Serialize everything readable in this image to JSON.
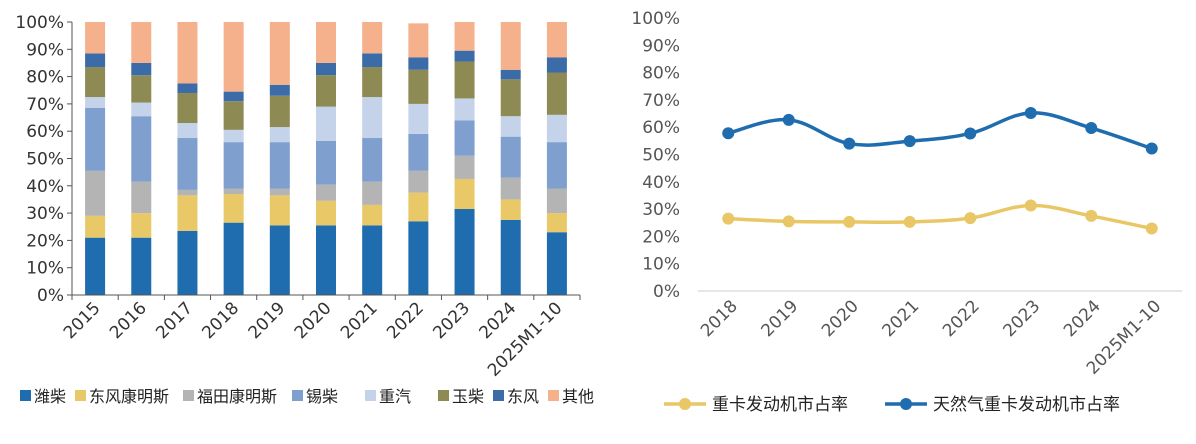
{
  "chart_data": [
    {
      "type": "bar",
      "stacked": true,
      "categories": [
        "2015",
        "2016",
        "2017",
        "2018",
        "2019",
        "2020",
        "2021",
        "2022",
        "2023",
        "2024",
        "2025M1-10"
      ],
      "ylim": [
        0,
        1
      ],
      "yticks": [
        "0%",
        "10%",
        "20%",
        "30%",
        "40%",
        "50%",
        "60%",
        "70%",
        "80%",
        "90%",
        "100%"
      ],
      "legend_position": "bottom",
      "series": [
        {
          "name": "潍柴",
          "color": "#1F6DAE",
          "values": [
            0.21,
            0.21,
            0.235,
            0.265,
            0.255,
            0.255,
            0.255,
            0.27,
            0.315,
            0.275,
            0.23
          ]
        },
        {
          "name": "东风康明斯",
          "color": "#E8C867",
          "values": [
            0.08,
            0.09,
            0.13,
            0.105,
            0.11,
            0.09,
            0.075,
            0.105,
            0.11,
            0.075,
            0.07
          ]
        },
        {
          "name": "福田康明斯",
          "color": "#B4B4B4",
          "values": [
            0.165,
            0.115,
            0.02,
            0.02,
            0.025,
            0.06,
            0.085,
            0.08,
            0.085,
            0.08,
            0.09
          ]
        },
        {
          "name": "锡柴",
          "color": "#7F9FCF",
          "values": [
            0.23,
            0.24,
            0.19,
            0.17,
            0.17,
            0.16,
            0.16,
            0.135,
            0.13,
            0.15,
            0.17
          ]
        },
        {
          "name": "重汽",
          "color": "#C5D3EA",
          "values": [
            0.04,
            0.05,
            0.055,
            0.045,
            0.055,
            0.125,
            0.15,
            0.11,
            0.08,
            0.075,
            0.1
          ]
        },
        {
          "name": "玉柴",
          "color": "#8D8A54",
          "values": [
            0.11,
            0.1,
            0.11,
            0.105,
            0.115,
            0.115,
            0.11,
            0.125,
            0.135,
            0.135,
            0.155
          ]
        },
        {
          "name": "东风",
          "color": "#3C6CA8",
          "values": [
            0.05,
            0.045,
            0.035,
            0.035,
            0.04,
            0.045,
            0.05,
            0.045,
            0.04,
            0.035,
            0.055
          ]
        },
        {
          "name": "其他",
          "color": "#F5B08C",
          "values": [
            0.115,
            0.15,
            0.225,
            0.255,
            0.23,
            0.15,
            0.115,
            0.125,
            0.105,
            0.175,
            0.13
          ]
        }
      ]
    },
    {
      "type": "line",
      "x": [
        "2018",
        "2019",
        "2020",
        "2021",
        "2022",
        "2023",
        "2024",
        "2025M1-10"
      ],
      "ylim": [
        0,
        1
      ],
      "yticks": [
        "0%",
        "10%",
        "20%",
        "30%",
        "40%",
        "50%",
        "60%",
        "70%",
        "80%",
        "90%",
        "100%"
      ],
      "legend_position": "bottom",
      "series": [
        {
          "name": "重卡发动机市占率",
          "color": "#E9C766",
          "values": [
            0.265,
            0.255,
            0.253,
            0.253,
            0.267,
            0.313,
            0.275,
            0.229
          ]
        },
        {
          "name": "天然气重卡发动机市占率",
          "color": "#1F6DAE",
          "values": [
            0.578,
            0.627,
            0.54,
            0.549,
            0.577,
            0.652,
            0.597,
            0.522
          ]
        }
      ]
    }
  ]
}
